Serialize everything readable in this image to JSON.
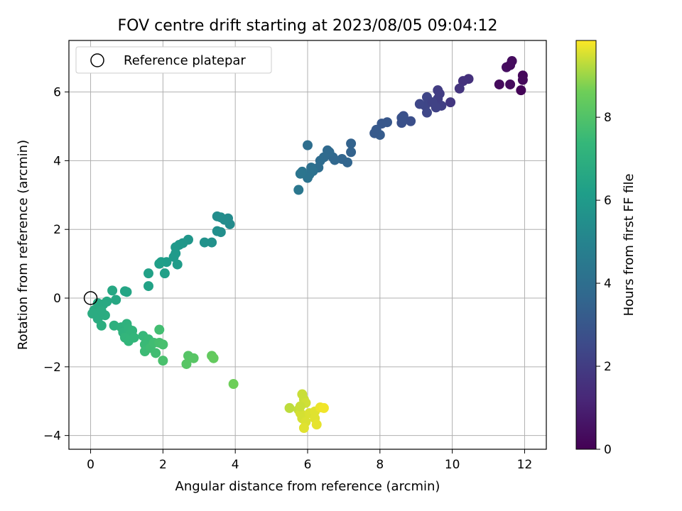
{
  "chart_data": {
    "type": "scatter",
    "title": "FOV centre drift starting at 2023/08/05 09:04:12",
    "xlabel": "Angular distance from reference (arcmin)",
    "ylabel": "Rotation from reference (arcmin)",
    "xlim": [
      -0.6,
      12.6
    ],
    "ylim": [
      -4.4,
      7.5
    ],
    "xticks": [
      0,
      2,
      4,
      6,
      8,
      10,
      12
    ],
    "yticks": [
      -4,
      -2,
      0,
      2,
      4,
      6
    ],
    "grid": true,
    "legend": {
      "position": "top-left",
      "entries": [
        "Reference platepar"
      ]
    },
    "reference_point": {
      "x": 0,
      "y": 0,
      "label": "Reference platepar"
    },
    "colorbar": {
      "label": "Hours from first FF file",
      "range": [
        0,
        9.85
      ],
      "ticks": [
        0,
        2,
        4,
        6,
        8
      ],
      "colormap": "viridis"
    },
    "points": [
      {
        "x": 11.3,
        "y": 6.22,
        "c": 0.3
      },
      {
        "x": 11.5,
        "y": 6.72,
        "c": 0.4
      },
      {
        "x": 11.6,
        "y": 6.78,
        "c": 0.3
      },
      {
        "x": 11.65,
        "y": 6.9,
        "c": 0.35
      },
      {
        "x": 11.6,
        "y": 6.22,
        "c": 0.3
      },
      {
        "x": 11.95,
        "y": 6.48,
        "c": 0.2
      },
      {
        "x": 11.95,
        "y": 6.35,
        "c": 0.25
      },
      {
        "x": 11.9,
        "y": 6.05,
        "c": 0.1
      },
      {
        "x": 10.45,
        "y": 6.38,
        "c": 1.55
      },
      {
        "x": 10.3,
        "y": 6.32,
        "c": 1.6
      },
      {
        "x": 10.2,
        "y": 6.1,
        "c": 1.7
      },
      {
        "x": 9.95,
        "y": 5.7,
        "c": 1.8
      },
      {
        "x": 9.6,
        "y": 6.05,
        "c": 2.0
      },
      {
        "x": 9.65,
        "y": 5.95,
        "c": 2.0
      },
      {
        "x": 9.6,
        "y": 5.8,
        "c": 2.05
      },
      {
        "x": 9.7,
        "y": 5.6,
        "c": 2.1
      },
      {
        "x": 9.55,
        "y": 5.55,
        "c": 2.2
      },
      {
        "x": 9.3,
        "y": 5.85,
        "c": 2.3
      },
      {
        "x": 9.25,
        "y": 5.6,
        "c": 2.35
      },
      {
        "x": 9.1,
        "y": 5.65,
        "c": 2.4
      },
      {
        "x": 9.3,
        "y": 5.4,
        "c": 2.4
      },
      {
        "x": 9.45,
        "y": 5.7,
        "c": 2.2
      },
      {
        "x": 8.85,
        "y": 5.15,
        "c": 2.7
      },
      {
        "x": 8.6,
        "y": 5.1,
        "c": 2.8
      },
      {
        "x": 8.65,
        "y": 5.3,
        "c": 2.75
      },
      {
        "x": 8.6,
        "y": 5.25,
        "c": 2.8
      },
      {
        "x": 8.2,
        "y": 5.12,
        "c": 3.0
      },
      {
        "x": 8.05,
        "y": 5.08,
        "c": 3.0
      },
      {
        "x": 7.9,
        "y": 4.9,
        "c": 3.1
      },
      {
        "x": 8.0,
        "y": 4.75,
        "c": 3.2
      },
      {
        "x": 7.85,
        "y": 4.8,
        "c": 3.15
      },
      {
        "x": 7.2,
        "y": 4.5,
        "c": 3.5
      },
      {
        "x": 7.2,
        "y": 4.25,
        "c": 3.5
      },
      {
        "x": 7.1,
        "y": 3.95,
        "c": 3.6
      },
      {
        "x": 6.95,
        "y": 4.05,
        "c": 3.6
      },
      {
        "x": 6.7,
        "y": 4.1,
        "c": 3.7
      },
      {
        "x": 6.75,
        "y": 4.02,
        "c": 3.7
      },
      {
        "x": 6.55,
        "y": 4.3,
        "c": 3.8
      },
      {
        "x": 6.6,
        "y": 4.25,
        "c": 3.8
      },
      {
        "x": 6.45,
        "y": 4.1,
        "c": 3.85
      },
      {
        "x": 6.35,
        "y": 4.0,
        "c": 3.9
      },
      {
        "x": 6.3,
        "y": 3.8,
        "c": 3.95
      },
      {
        "x": 6.0,
        "y": 4.45,
        "c": 4.0
      },
      {
        "x": 6.1,
        "y": 3.8,
        "c": 4.05
      },
      {
        "x": 6.15,
        "y": 3.7,
        "c": 4.1
      },
      {
        "x": 6.05,
        "y": 3.6,
        "c": 4.15
      },
      {
        "x": 6.0,
        "y": 3.5,
        "c": 4.2
      },
      {
        "x": 5.85,
        "y": 3.68,
        "c": 4.25
      },
      {
        "x": 5.8,
        "y": 3.62,
        "c": 4.3
      },
      {
        "x": 5.75,
        "y": 3.15,
        "c": 4.4
      },
      {
        "x": 3.85,
        "y": 2.15,
        "c": 5.3
      },
      {
        "x": 3.8,
        "y": 2.32,
        "c": 5.3
      },
      {
        "x": 3.7,
        "y": 2.28,
        "c": 5.35
      },
      {
        "x": 3.6,
        "y": 2.35,
        "c": 5.4
      },
      {
        "x": 3.5,
        "y": 2.38,
        "c": 5.4
      },
      {
        "x": 3.6,
        "y": 1.92,
        "c": 5.45
      },
      {
        "x": 3.5,
        "y": 1.95,
        "c": 5.5
      },
      {
        "x": 3.35,
        "y": 1.62,
        "c": 5.6
      },
      {
        "x": 3.15,
        "y": 1.62,
        "c": 5.65
      },
      {
        "x": 2.7,
        "y": 1.7,
        "c": 5.8
      },
      {
        "x": 2.55,
        "y": 1.6,
        "c": 5.85
      },
      {
        "x": 2.45,
        "y": 1.55,
        "c": 5.9
      },
      {
        "x": 2.35,
        "y": 1.48,
        "c": 5.95
      },
      {
        "x": 2.35,
        "y": 1.3,
        "c": 6.0
      },
      {
        "x": 2.3,
        "y": 1.2,
        "c": 6.0
      },
      {
        "x": 2.4,
        "y": 0.98,
        "c": 6.05
      },
      {
        "x": 2.1,
        "y": 1.05,
        "c": 6.1
      },
      {
        "x": 1.95,
        "y": 1.05,
        "c": 6.15
      },
      {
        "x": 1.9,
        "y": 1.0,
        "c": 6.2
      },
      {
        "x": 2.05,
        "y": 0.72,
        "c": 6.25
      },
      {
        "x": 1.6,
        "y": 0.72,
        "c": 6.3
      },
      {
        "x": 1.6,
        "y": 0.35,
        "c": 6.35
      },
      {
        "x": 1.0,
        "y": 0.18,
        "c": 6.5
      },
      {
        "x": 0.95,
        "y": 0.2,
        "c": 6.5
      },
      {
        "x": 0.6,
        "y": 0.22,
        "c": 6.6
      },
      {
        "x": 0.45,
        "y": -0.1,
        "c": 6.65
      },
      {
        "x": 0.7,
        "y": -0.05,
        "c": 6.6
      },
      {
        "x": 0.35,
        "y": -0.18,
        "c": 6.7
      },
      {
        "x": 0.2,
        "y": -0.15,
        "c": 6.7
      },
      {
        "x": 0.1,
        "y": -0.35,
        "c": 6.75
      },
      {
        "x": 0.15,
        "y": -0.45,
        "c": 6.8
      },
      {
        "x": 0.2,
        "y": -0.6,
        "c": 6.8
      },
      {
        "x": 0.4,
        "y": -0.5,
        "c": 6.85
      },
      {
        "x": 0.3,
        "y": -0.38,
        "c": 6.8
      },
      {
        "x": 0.3,
        "y": -0.8,
        "c": 6.9
      },
      {
        "x": 0.05,
        "y": -0.45,
        "c": 6.8
      },
      {
        "x": 0.65,
        "y": -0.8,
        "c": 7.0
      },
      {
        "x": 0.85,
        "y": -0.85,
        "c": 7.05
      },
      {
        "x": 0.9,
        "y": -1.0,
        "c": 7.1
      },
      {
        "x": 1.0,
        "y": -0.75,
        "c": 7.1
      },
      {
        "x": 1.05,
        "y": -0.9,
        "c": 7.15
      },
      {
        "x": 1.1,
        "y": -1.05,
        "c": 7.2
      },
      {
        "x": 1.15,
        "y": -0.95,
        "c": 7.2
      },
      {
        "x": 0.95,
        "y": -1.15,
        "c": 7.25
      },
      {
        "x": 1.05,
        "y": -1.25,
        "c": 7.3
      },
      {
        "x": 1.2,
        "y": -1.15,
        "c": 7.3
      },
      {
        "x": 1.45,
        "y": -1.1,
        "c": 7.4
      },
      {
        "x": 1.6,
        "y": -1.2,
        "c": 7.45
      },
      {
        "x": 1.5,
        "y": -1.35,
        "c": 7.5
      },
      {
        "x": 1.5,
        "y": -1.55,
        "c": 7.55
      },
      {
        "x": 1.65,
        "y": -1.45,
        "c": 7.6
      },
      {
        "x": 1.75,
        "y": -1.3,
        "c": 7.65
      },
      {
        "x": 1.8,
        "y": -1.6,
        "c": 7.65
      },
      {
        "x": 1.9,
        "y": -0.92,
        "c": 7.7
      },
      {
        "x": 1.9,
        "y": -1.3,
        "c": 7.75
      },
      {
        "x": 2.0,
        "y": -1.35,
        "c": 7.8
      },
      {
        "x": 2.0,
        "y": -1.82,
        "c": 7.85
      },
      {
        "x": 2.7,
        "y": -1.68,
        "c": 8.1
      },
      {
        "x": 2.85,
        "y": -1.75,
        "c": 8.15
      },
      {
        "x": 2.65,
        "y": -1.92,
        "c": 8.15
      },
      {
        "x": 3.35,
        "y": -1.68,
        "c": 8.35
      },
      {
        "x": 3.4,
        "y": -1.75,
        "c": 8.4
      },
      {
        "x": 3.95,
        "y": -2.5,
        "c": 8.6
      },
      {
        "x": 5.5,
        "y": -3.2,
        "c": 9.3
      },
      {
        "x": 5.75,
        "y": -3.25,
        "c": 9.35
      },
      {
        "x": 5.85,
        "y": -2.8,
        "c": 9.4
      },
      {
        "x": 5.9,
        "y": -2.95,
        "c": 9.4
      },
      {
        "x": 5.95,
        "y": -3.05,
        "c": 9.45
      },
      {
        "x": 5.8,
        "y": -3.35,
        "c": 9.5
      },
      {
        "x": 5.85,
        "y": -3.5,
        "c": 9.5
      },
      {
        "x": 5.95,
        "y": -3.6,
        "c": 9.55
      },
      {
        "x": 5.9,
        "y": -3.78,
        "c": 9.6
      },
      {
        "x": 6.05,
        "y": -3.35,
        "c": 9.55
      },
      {
        "x": 6.2,
        "y": -3.5,
        "c": 9.6
      },
      {
        "x": 6.25,
        "y": -3.68,
        "c": 9.65
      },
      {
        "x": 6.2,
        "y": -3.3,
        "c": 9.6
      },
      {
        "x": 6.35,
        "y": -3.18,
        "c": 9.7
      },
      {
        "x": 6.45,
        "y": -3.2,
        "c": 9.75
      },
      {
        "x": 5.8,
        "y": -3.15,
        "c": 9.4
      }
    ]
  }
}
